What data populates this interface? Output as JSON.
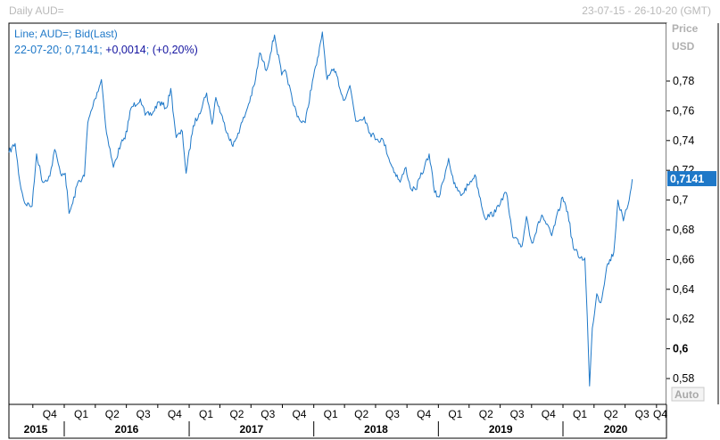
{
  "header": {
    "title": "Daily AUD=",
    "range": "23-07-15 - 26-10-20 (GMT)"
  },
  "legend": {
    "line1": "Line; AUD=; Bid(Last)",
    "date": "22-07-20",
    "value": "0,7141",
    "change": "+0,0014",
    "change_pct": "(+0,20%)"
  },
  "axis": {
    "price_label": "Price",
    "currency_label": "USD",
    "auto_label": "Auto",
    "last_value_badge": "0,7141"
  },
  "colors": {
    "series": "#1e78c8",
    "badge_bg": "#1e78c8",
    "badge_text": "#ffffff",
    "legend_values": "#1414a0",
    "frame": "#000000",
    "muted_text": "#b9b9b9"
  },
  "chart_data": {
    "type": "line",
    "title": "Daily AUD=",
    "ylim": [
      0.565,
      0.825
    ],
    "y_ticks": [
      "0,58",
      "0,6",
      "0,62",
      "0,64",
      "0,66",
      "0,68",
      "0,7",
      "0,72",
      "0,74",
      "0,76",
      "0,78"
    ],
    "x_quarter_labels": [
      "Q4",
      "Q1",
      "Q2",
      "Q3",
      "Q4",
      "Q1",
      "Q2",
      "Q3",
      "Q4",
      "Q1",
      "Q2",
      "Q3",
      "Q4",
      "Q1",
      "Q2",
      "Q3",
      "Q4",
      "Q1",
      "Q2",
      "Q3",
      "Q4"
    ],
    "x_year_labels": [
      "2015",
      "2016",
      "2017",
      "2018",
      "2019",
      "2020"
    ],
    "series": [
      {
        "values": [
          [
            "2015-07-23",
            0.732
          ],
          [
            "2015-08-10",
            0.738
          ],
          [
            "2015-08-24",
            0.712
          ],
          [
            "2015-09-07",
            0.698
          ],
          [
            "2015-09-29",
            0.696
          ],
          [
            "2015-10-12",
            0.731
          ],
          [
            "2015-10-30",
            0.712
          ],
          [
            "2015-11-20",
            0.716
          ],
          [
            "2015-12-04",
            0.734
          ],
          [
            "2015-12-21",
            0.718
          ],
          [
            "2016-01-04",
            0.718
          ],
          [
            "2016-01-15",
            0.691
          ],
          [
            "2016-01-26",
            0.698
          ],
          [
            "2016-02-10",
            0.712
          ],
          [
            "2016-02-29",
            0.716
          ],
          [
            "2016-03-10",
            0.752
          ],
          [
            "2016-03-31",
            0.768
          ],
          [
            "2016-04-19",
            0.781
          ],
          [
            "2016-05-04",
            0.745
          ],
          [
            "2016-05-24",
            0.722
          ],
          [
            "2016-06-15",
            0.738
          ],
          [
            "2016-06-27",
            0.741
          ],
          [
            "2016-07-15",
            0.762
          ],
          [
            "2016-08-11",
            0.768
          ],
          [
            "2016-08-25",
            0.757
          ],
          [
            "2016-09-15",
            0.758
          ],
          [
            "2016-10-03",
            0.766
          ],
          [
            "2016-10-27",
            0.762
          ],
          [
            "2016-11-08",
            0.775
          ],
          [
            "2016-11-24",
            0.742
          ],
          [
            "2016-12-12",
            0.746
          ],
          [
            "2016-12-23",
            0.718
          ],
          [
            "2017-01-13",
            0.75
          ],
          [
            "2017-01-30",
            0.758
          ],
          [
            "2017-02-21",
            0.772
          ],
          [
            "2017-03-09",
            0.751
          ],
          [
            "2017-03-20",
            0.769
          ],
          [
            "2017-04-11",
            0.753
          ],
          [
            "2017-05-09",
            0.736
          ],
          [
            "2017-05-24",
            0.745
          ],
          [
            "2017-06-15",
            0.758
          ],
          [
            "2017-07-12",
            0.778
          ],
          [
            "2017-07-27",
            0.799
          ],
          [
            "2017-08-15",
            0.787
          ],
          [
            "2017-09-08",
            0.811
          ],
          [
            "2017-09-29",
            0.784
          ],
          [
            "2017-10-12",
            0.786
          ],
          [
            "2017-10-31",
            0.766
          ],
          [
            "2017-11-20",
            0.754
          ],
          [
            "2017-12-07",
            0.752
          ],
          [
            "2017-12-28",
            0.78
          ],
          [
            "2018-01-15",
            0.797
          ],
          [
            "2018-01-26",
            0.813
          ],
          [
            "2018-02-09",
            0.781
          ],
          [
            "2018-02-26",
            0.787
          ],
          [
            "2018-03-09",
            0.784
          ],
          [
            "2018-03-29",
            0.767
          ],
          [
            "2018-04-17",
            0.777
          ],
          [
            "2018-05-04",
            0.753
          ],
          [
            "2018-05-29",
            0.756
          ],
          [
            "2018-06-15",
            0.745
          ],
          [
            "2018-07-06",
            0.741
          ],
          [
            "2018-07-24",
            0.74
          ],
          [
            "2018-08-15",
            0.724
          ],
          [
            "2018-09-11",
            0.712
          ],
          [
            "2018-09-28",
            0.722
          ],
          [
            "2018-10-11",
            0.708
          ],
          [
            "2018-10-26",
            0.707
          ],
          [
            "2018-11-21",
            0.722
          ],
          [
            "2018-12-05",
            0.731
          ],
          [
            "2018-12-21",
            0.705
          ],
          [
            "2019-01-03",
            0.702
          ],
          [
            "2019-01-31",
            0.728
          ],
          [
            "2019-02-15",
            0.711
          ],
          [
            "2019-03-08",
            0.703
          ],
          [
            "2019-03-29",
            0.71
          ],
          [
            "2019-04-18",
            0.717
          ],
          [
            "2019-05-17",
            0.688
          ],
          [
            "2019-06-18",
            0.692
          ],
          [
            "2019-07-05",
            0.701
          ],
          [
            "2019-07-19",
            0.705
          ],
          [
            "2019-08-07",
            0.675
          ],
          [
            "2019-09-03",
            0.669
          ],
          [
            "2019-09-16",
            0.689
          ],
          [
            "2019-10-02",
            0.671
          ],
          [
            "2019-10-31",
            0.69
          ],
          [
            "2019-11-29",
            0.676
          ],
          [
            "2019-12-31",
            0.702
          ],
          [
            "2020-01-15",
            0.692
          ],
          [
            "2020-01-31",
            0.668
          ],
          [
            "2020-02-21",
            0.661
          ],
          [
            "2020-03-05",
            0.661
          ],
          [
            "2020-03-12",
            0.622
          ],
          [
            "2020-03-19",
            0.575
          ],
          [
            "2020-03-27",
            0.614
          ],
          [
            "2020-04-09",
            0.637
          ],
          [
            "2020-04-21",
            0.631
          ],
          [
            "2020-05-08",
            0.655
          ],
          [
            "2020-05-29",
            0.665
          ],
          [
            "2020-06-10",
            0.7
          ],
          [
            "2020-06-26",
            0.686
          ],
          [
            "2020-07-10",
            0.697
          ],
          [
            "2020-07-22",
            0.714
          ]
        ]
      }
    ],
    "last_value": 0.7141
  }
}
